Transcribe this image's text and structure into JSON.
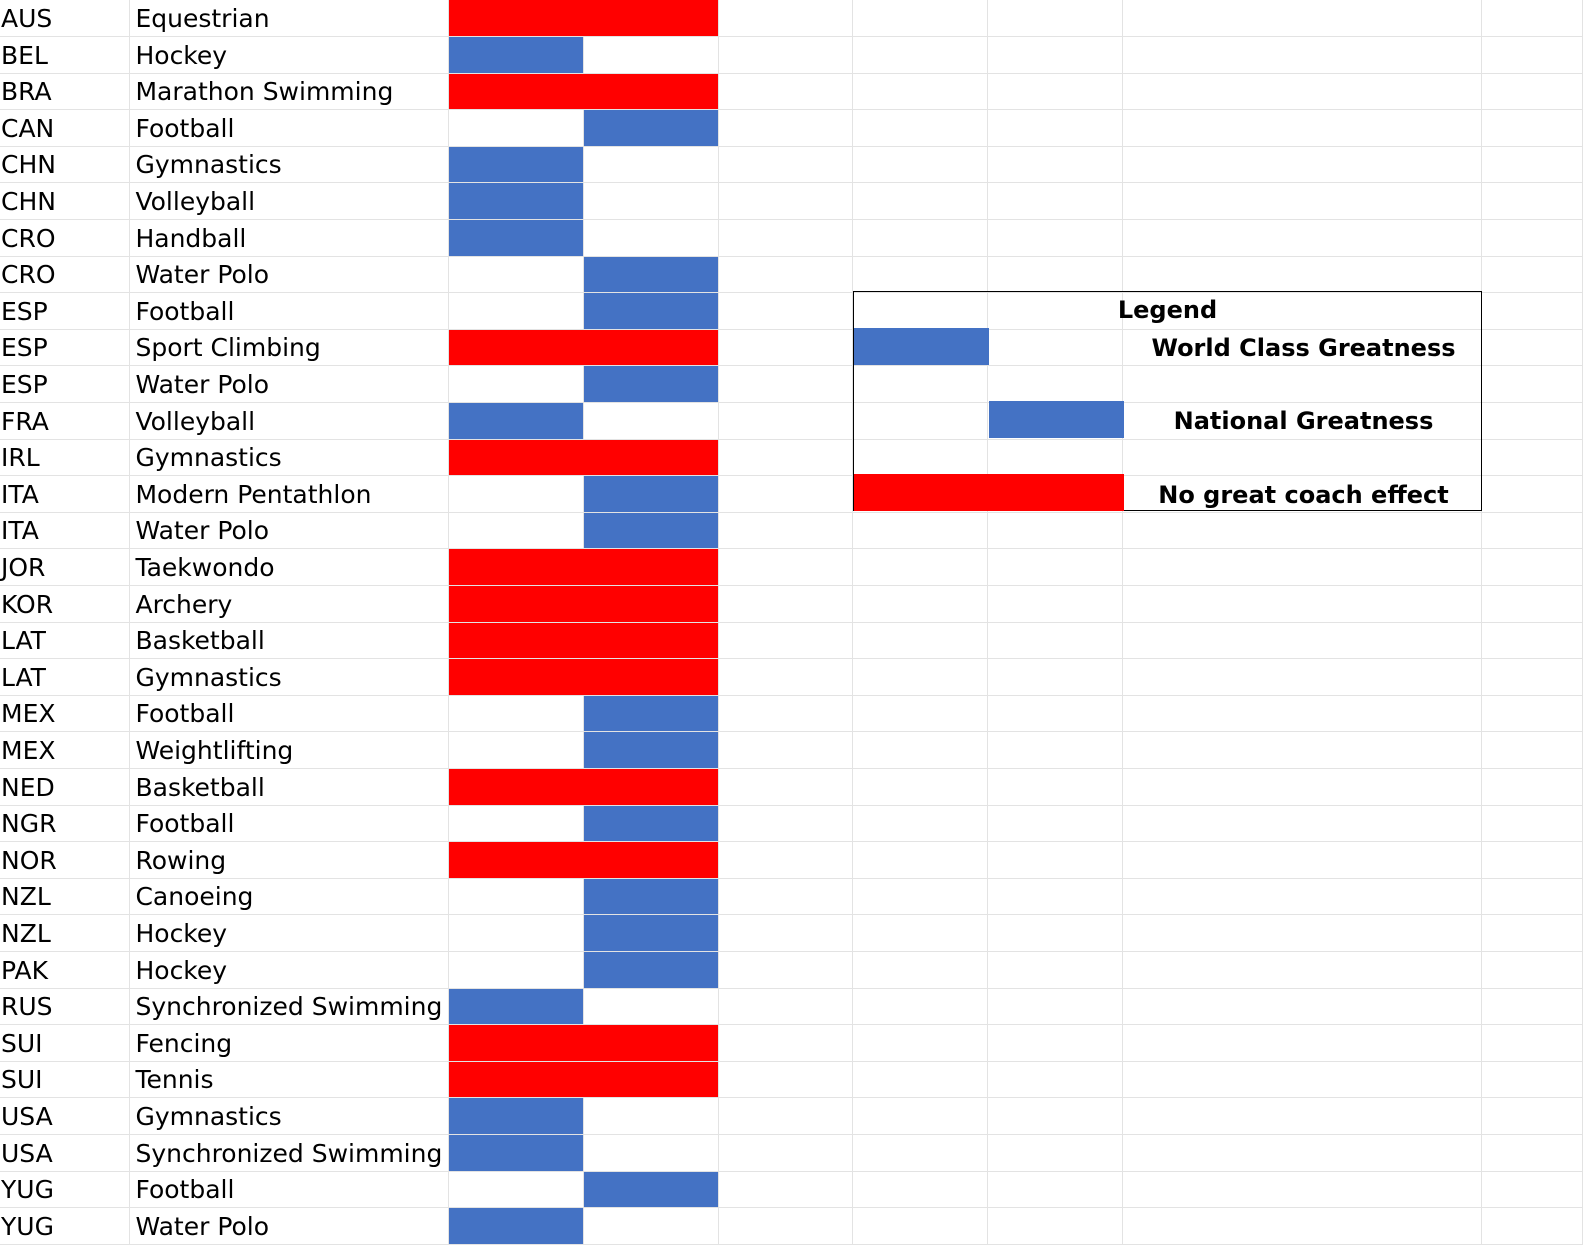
{
  "colors": {
    "world_class": "#4472c4",
    "national": "#4472c4",
    "no_effect": "#ff0000",
    "gridline": "#e3e3e3"
  },
  "rows": [
    {
      "country": "AUS",
      "sport": "Equestrian",
      "category": "no_effect"
    },
    {
      "country": "BEL",
      "sport": "Hockey",
      "category": "world_class"
    },
    {
      "country": "BRA",
      "sport": "Marathon Swimming",
      "category": "no_effect"
    },
    {
      "country": "CAN",
      "sport": "Football",
      "category": "national"
    },
    {
      "country": "CHN",
      "sport": "Gymnastics",
      "category": "world_class"
    },
    {
      "country": "CHN",
      "sport": "Volleyball",
      "category": "world_class"
    },
    {
      "country": "CRO",
      "sport": "Handball",
      "category": "world_class"
    },
    {
      "country": "CRO",
      "sport": "Water Polo",
      "category": "national"
    },
    {
      "country": "ESP",
      "sport": "Football",
      "category": "national"
    },
    {
      "country": "ESP",
      "sport": "Sport Climbing",
      "category": "no_effect"
    },
    {
      "country": "ESP",
      "sport": "Water Polo",
      "category": "national"
    },
    {
      "country": "FRA",
      "sport": "Volleyball",
      "category": "world_class"
    },
    {
      "country": "IRL",
      "sport": "Gymnastics",
      "category": "no_effect"
    },
    {
      "country": "ITA",
      "sport": "Modern Pentathlon",
      "category": "national"
    },
    {
      "country": "ITA",
      "sport": "Water Polo",
      "category": "national"
    },
    {
      "country": "JOR",
      "sport": "Taekwondo",
      "category": "no_effect"
    },
    {
      "country": "KOR",
      "sport": "Archery",
      "category": "no_effect"
    },
    {
      "country": "LAT",
      "sport": "Basketball",
      "category": "no_effect"
    },
    {
      "country": "LAT",
      "sport": "Gymnastics",
      "category": "no_effect"
    },
    {
      "country": "MEX",
      "sport": "Football",
      "category": "national"
    },
    {
      "country": "MEX",
      "sport": "Weightlifting",
      "category": "national"
    },
    {
      "country": "NED",
      "sport": "Basketball",
      "category": "no_effect"
    },
    {
      "country": "NGR",
      "sport": "Football",
      "category": "national"
    },
    {
      "country": "NOR",
      "sport": "Rowing",
      "category": "no_effect"
    },
    {
      "country": "NZL",
      "sport": "Canoeing",
      "category": "national"
    },
    {
      "country": "NZL",
      "sport": "Hockey",
      "category": "national"
    },
    {
      "country": "PAK",
      "sport": "Hockey",
      "category": "national"
    },
    {
      "country": "RUS",
      "sport": "Synchronized Swimming",
      "category": "world_class"
    },
    {
      "country": "SUI",
      "sport": "Fencing",
      "category": "no_effect"
    },
    {
      "country": "SUI",
      "sport": "Tennis",
      "category": "no_effect"
    },
    {
      "country": "USA",
      "sport": "Gymnastics",
      "category": "world_class"
    },
    {
      "country": "USA",
      "sport": "Synchronized Swimming",
      "category": "world_class"
    },
    {
      "country": "YUG",
      "sport": "Football",
      "category": "national"
    },
    {
      "country": "YUG",
      "sport": "Water Polo",
      "category": "world_class"
    }
  ],
  "legend": {
    "title": "Legend",
    "world_class_label": "World Class Greatness",
    "national_label": "National Greatness",
    "no_effect_label": "No great coach effect"
  }
}
